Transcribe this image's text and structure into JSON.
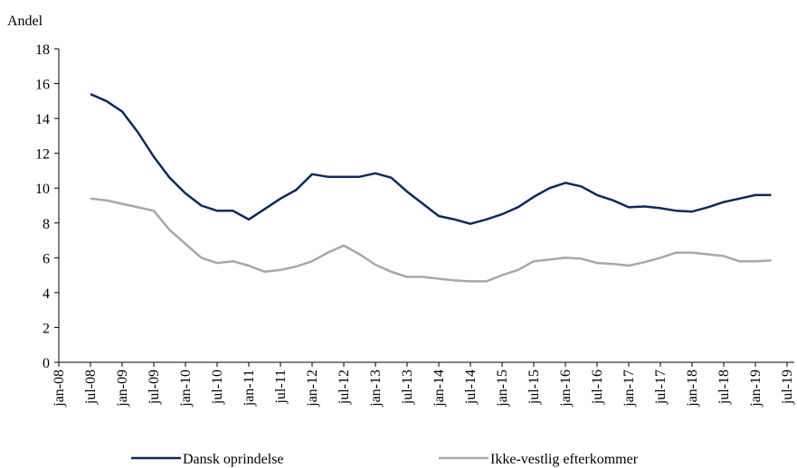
{
  "chart_data": {
    "type": "line",
    "y_label": "Andel",
    "categories": [
      "jan-08",
      null,
      "jul-08",
      null,
      "jan-09",
      null,
      "jul-09",
      null,
      "jan-10",
      null,
      "jul-10",
      null,
      "jan-11",
      null,
      "jul-11",
      null,
      "jan-12",
      null,
      "jul-12",
      null,
      "jan-13",
      null,
      "jul-13",
      null,
      "jan-14",
      null,
      "jul-14",
      null,
      "jan-15",
      null,
      "jul-15",
      null,
      "jan-16",
      null,
      "jul-16",
      null,
      "jan-17",
      null,
      "jul-17",
      null,
      "jan-18",
      null,
      "jul-18",
      null,
      "jan-19",
      null,
      "jul-19"
    ],
    "series": [
      {
        "name": "Dansk oprindelse",
        "color": "#0b2a5c",
        "values": [
          null,
          null,
          15.4,
          15.0,
          14.4,
          13.2,
          11.8,
          10.6,
          9.7,
          9.0,
          8.7,
          8.7,
          8.2,
          8.8,
          9.4,
          9.9,
          10.8,
          10.65,
          10.65,
          10.65,
          10.85,
          10.6,
          9.8,
          9.1,
          8.4,
          8.2,
          7.95,
          8.2,
          8.5,
          8.9,
          9.5,
          10.0,
          10.3,
          10.1,
          9.6,
          9.3,
          8.9,
          8.95,
          8.85,
          8.7,
          8.65,
          8.9,
          9.2,
          9.4,
          9.6,
          9.6,
          null
        ]
      },
      {
        "name": "Ikke-vestlig efterkommer",
        "color": "#a3a9b0",
        "values": [
          null,
          null,
          9.4,
          9.3,
          9.1,
          8.9,
          8.7,
          7.6,
          6.8,
          6.0,
          5.7,
          5.8,
          5.55,
          5.2,
          5.3,
          5.5,
          5.8,
          6.3,
          6.7,
          6.2,
          5.6,
          5.2,
          4.9,
          4.9,
          4.8,
          4.7,
          4.65,
          4.65,
          5.0,
          5.3,
          5.8,
          5.9,
          6.0,
          5.95,
          5.7,
          5.65,
          5.55,
          5.75,
          6.0,
          6.3,
          6.3,
          6.2,
          6.1,
          5.8,
          5.8,
          5.85,
          null
        ]
      }
    ],
    "ylim": [
      0,
      18
    ],
    "yticks": [
      0,
      2,
      4,
      6,
      8,
      10,
      12,
      14,
      16,
      18
    ],
    "grid": false,
    "legend": "bottom"
  }
}
